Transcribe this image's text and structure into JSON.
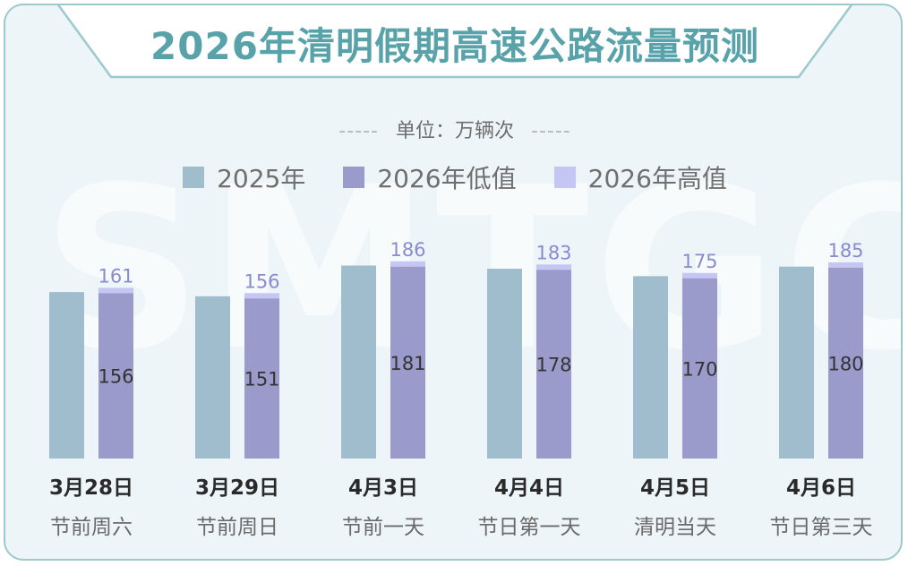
{
  "title": "2026年清明假期高速公路流量预测",
  "unit": {
    "dashes_left": "-----",
    "label": "单位：万辆次",
    "dashes_right": "-----"
  },
  "watermark": "SMTGC",
  "colors": {
    "series_2025": "#9fbdcc",
    "series_2026_low": "#9b9bcb",
    "series_2026_high": "#c6c6f4",
    "label_low": "#333333",
    "label_high": "#8a8ad0",
    "title": "#58a2aa",
    "border": "#9cc9cd",
    "background": "#edf5f8"
  },
  "chart_data": {
    "type": "bar",
    "title": "2026年清明假期高速公路流量预测",
    "ylabel": "单位：万辆次",
    "xlabel": "",
    "ylim": [
      0,
      200
    ],
    "grid": false,
    "legend_position": "top-center",
    "categories": [
      "3月28日",
      "3月29日",
      "4月3日",
      "4月4日",
      "4月5日",
      "4月6日"
    ],
    "subcategories": [
      "节前周六",
      "节前周日",
      "节前一天",
      "节日第一天",
      "清明当天",
      "节日第三天"
    ],
    "series": [
      {
        "name": "2025年",
        "values": [
          157,
          153,
          182,
          179,
          172,
          181
        ]
      },
      {
        "name": "2026年低值",
        "values": [
          156,
          151,
          181,
          178,
          170,
          180
        ]
      },
      {
        "name": "2026年高值",
        "values": [
          161,
          156,
          186,
          183,
          175,
          185
        ]
      }
    ]
  }
}
